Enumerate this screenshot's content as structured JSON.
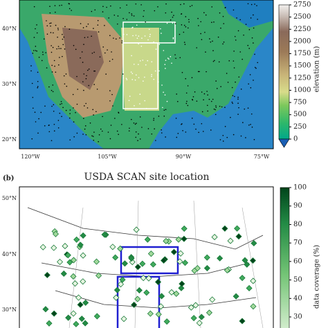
{
  "panel_a": {
    "lat_labels": [
      "40°N",
      "30°N",
      "20°N"
    ],
    "lon_labels": [
      "120°W",
      "105°W",
      "90°W",
      "75°W"
    ],
    "colorbar": {
      "label": "elevation (m)",
      "ticks": [
        0,
        250,
        500,
        750,
        1000,
        1250,
        1500,
        1750,
        2000,
        2250,
        2500,
        2750
      ]
    }
  },
  "panel_b": {
    "tag": "(b)",
    "title": "USDA SCAN site location",
    "lat_labels": [
      "50°N",
      "40°N",
      "30°N"
    ],
    "colorbar": {
      "label": "data coverage (%)",
      "ticks": [
        30,
        40,
        50,
        60,
        70,
        80,
        90,
        100
      ]
    }
  }
}
